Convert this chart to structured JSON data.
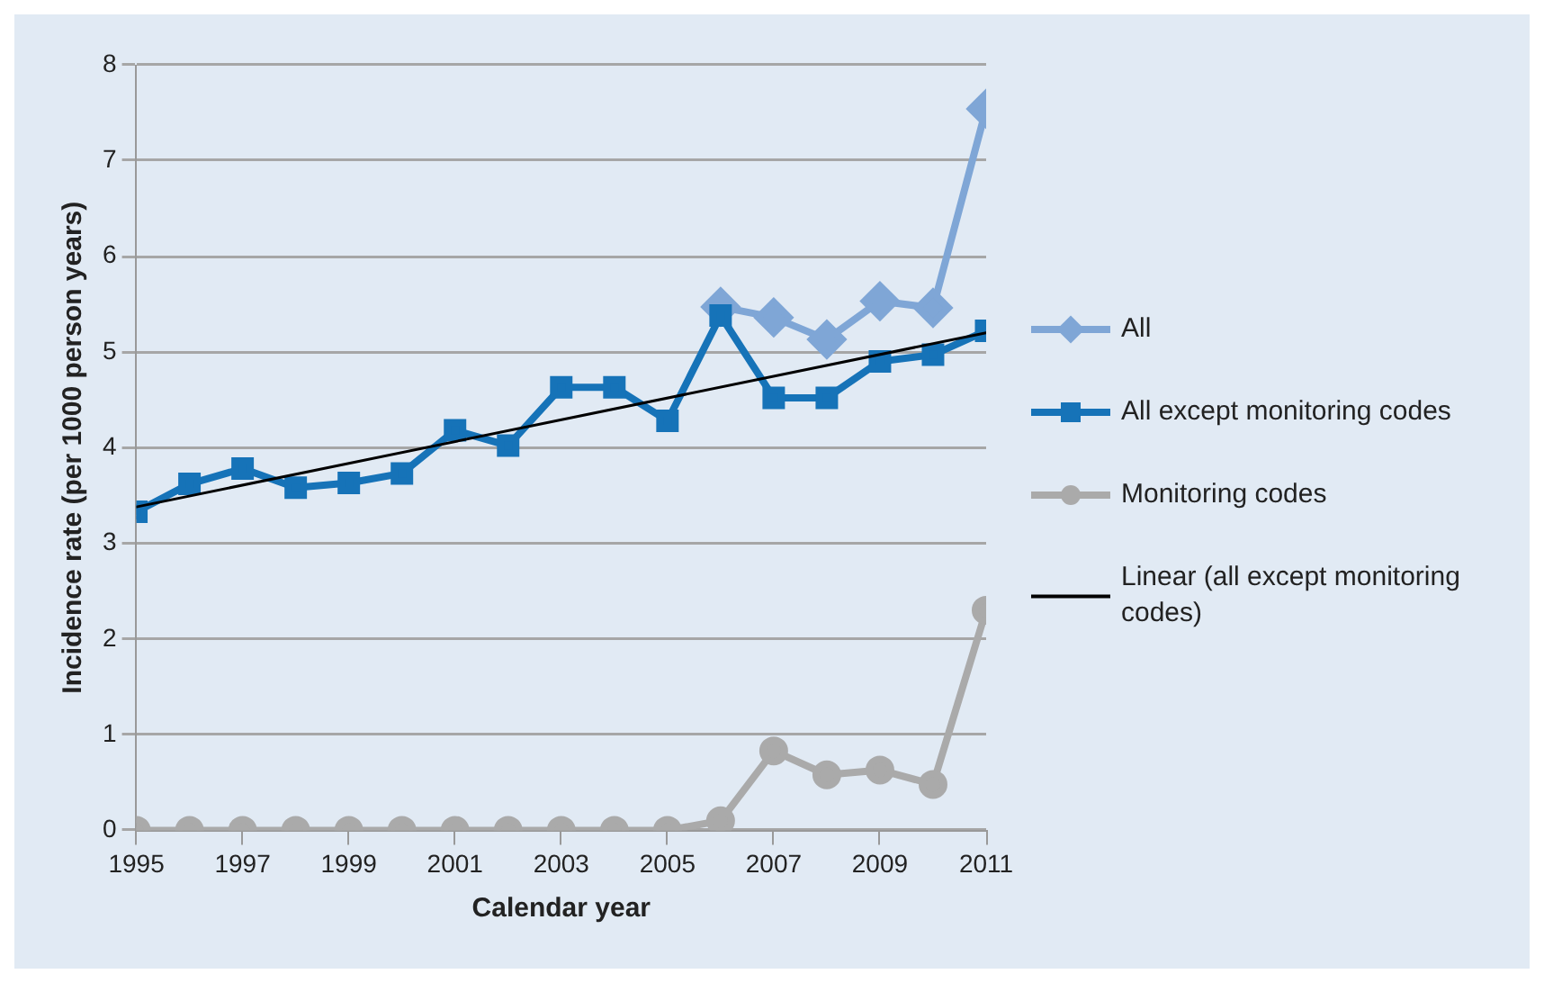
{
  "chart_data": {
    "type": "line",
    "xlabel": "Calendar year",
    "ylabel": "Incidence rate (per 1000 person years)",
    "x": [
      1995,
      1996,
      1997,
      1998,
      1999,
      2000,
      2001,
      2002,
      2003,
      2004,
      2005,
      2006,
      2007,
      2008,
      2009,
      2010,
      2011
    ],
    "series": [
      {
        "name": "All",
        "color": "#7fa6d6",
        "marker": "diamond",
        "values": [
          null,
          null,
          null,
          null,
          null,
          null,
          null,
          null,
          null,
          null,
          null,
          5.47,
          5.36,
          5.13,
          5.53,
          5.46,
          7.54
        ]
      },
      {
        "name": "All except monitoring codes",
        "color": "#1673b8",
        "marker": "square",
        "values": [
          3.33,
          3.62,
          3.78,
          3.58,
          3.63,
          3.73,
          4.18,
          4.02,
          4.63,
          4.63,
          4.28,
          5.38,
          4.52,
          4.52,
          4.9,
          4.97,
          5.22
        ]
      },
      {
        "name": "Monitoring codes",
        "color": "#aaaaaa",
        "marker": "circle",
        "values": [
          0,
          0,
          0,
          0,
          0,
          0,
          0,
          0,
          0,
          0,
          0,
          0.1,
          0.83,
          0.58,
          0.63,
          0.48,
          2.3
        ]
      },
      {
        "name": "Linear (all except monitoring codes)",
        "color": "#000000",
        "marker": "none",
        "x": [
          1995,
          2011
        ],
        "values": [
          3.38,
          5.2
        ]
      }
    ],
    "xlim": [
      1995,
      2011
    ],
    "xticks": [
      1995,
      1997,
      1999,
      2001,
      2003,
      2005,
      2007,
      2009,
      2011
    ],
    "ylim": [
      0,
      8
    ],
    "yticks": [
      0,
      1,
      2,
      3,
      4,
      5,
      6,
      7,
      8
    ],
    "grid": "y",
    "legend": "right"
  }
}
